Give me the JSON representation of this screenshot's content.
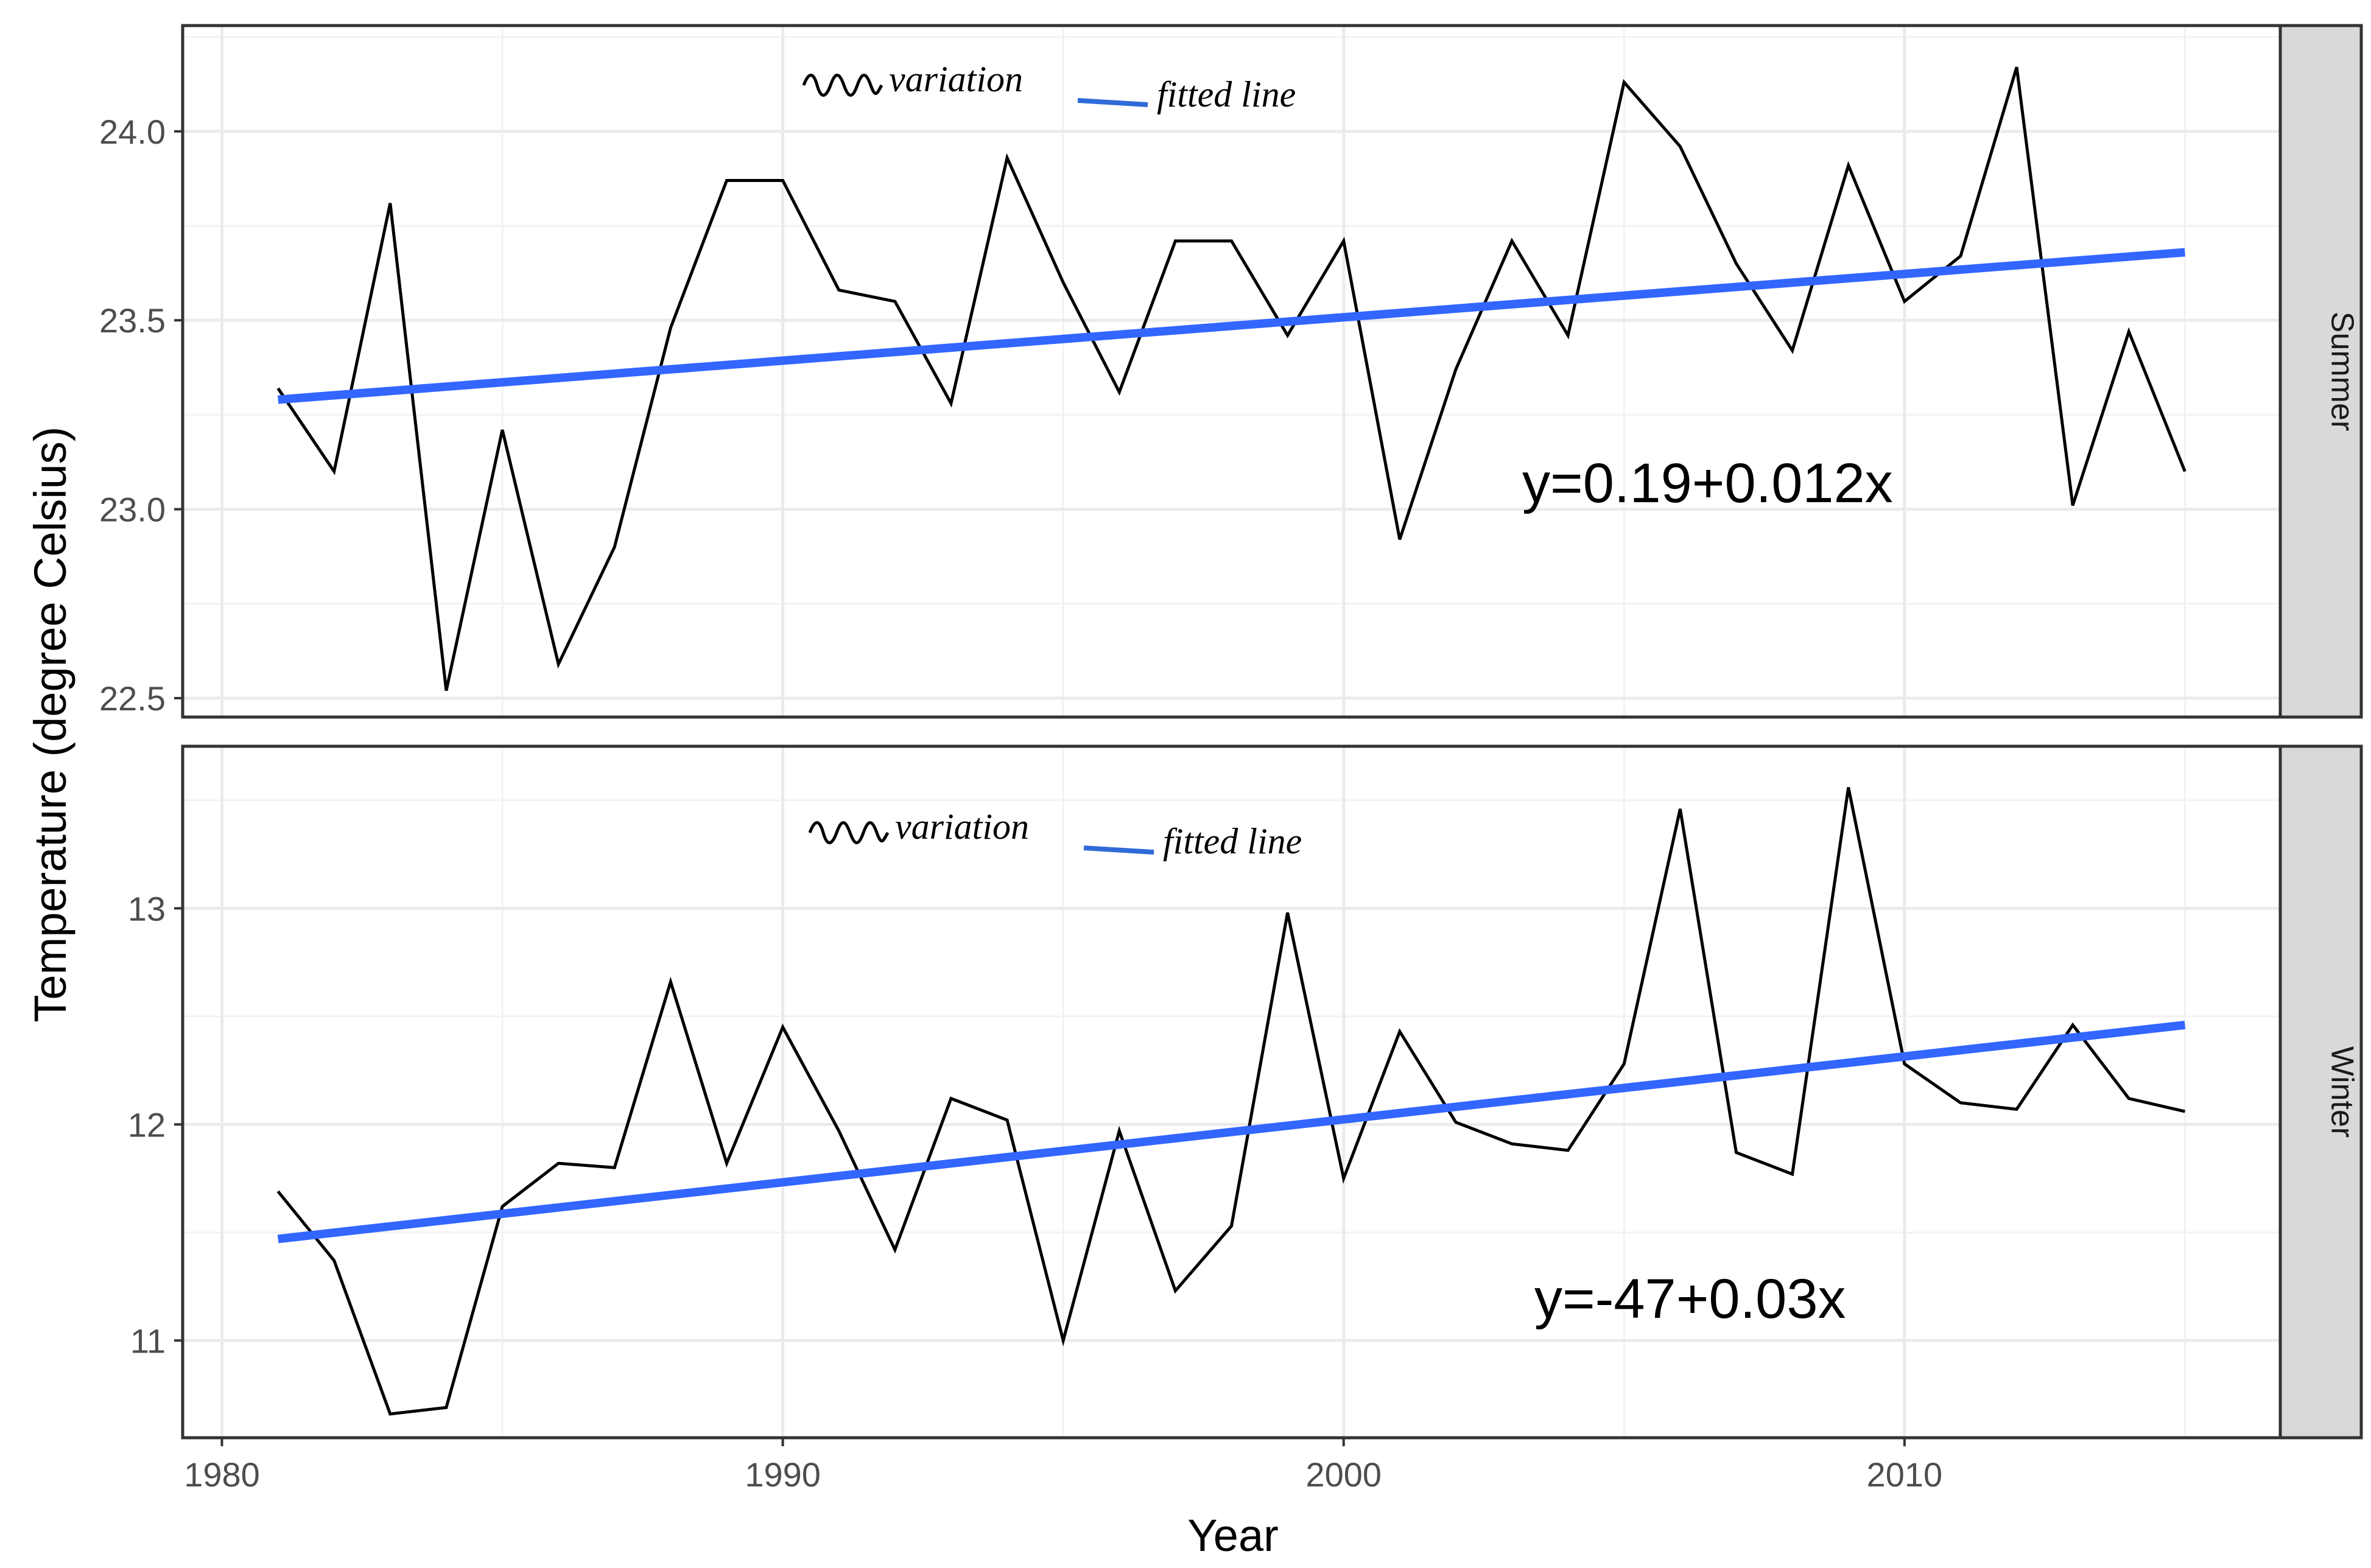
{
  "chart_data": {
    "type": "line",
    "xlabel": "Year",
    "ylabel": "Temperature (degree Celsius)",
    "xlim": [
      1979.3,
      2016.7
    ],
    "x_ticks": [
      1980,
      1990,
      2000,
      2010
    ],
    "x_tick_labels": [
      "1980",
      "1990",
      "2000",
      "2010"
    ],
    "grid": true,
    "legend": {
      "position": "top-center",
      "entries": [
        "variation",
        "fitted line"
      ]
    },
    "colors": {
      "variation": "#000000",
      "fitted": "#3366FF",
      "strip": "#D9D9D9",
      "grid": "#EBEBEB",
      "border": "#333333"
    },
    "panels": [
      {
        "strip": "Summer",
        "equation": "y=0.19+0.012x",
        "ylim": [
          22.45,
          24.28
        ],
        "y_ticks": [
          22.5,
          23.0,
          23.5,
          24.0
        ],
        "y_tick_labels": [
          "22.5",
          "23.0",
          "23.5",
          "24.0"
        ],
        "x": [
          1981,
          1982,
          1983,
          1984,
          1985,
          1986,
          1987,
          1988,
          1989,
          1990,
          1991,
          1992,
          1993,
          1994,
          1995,
          1996,
          1997,
          1998,
          1999,
          2000,
          2001,
          2002,
          2003,
          2004,
          2005,
          2006,
          2007,
          2008,
          2009,
          2010,
          2011,
          2012,
          2013,
          2014,
          2015
        ],
        "series": [
          {
            "name": "variation",
            "values": [
              23.32,
              23.1,
              23.81,
              22.52,
              23.21,
              22.59,
              22.9,
              23.48,
              23.87,
              23.87,
              23.58,
              23.55,
              23.28,
              23.93,
              23.6,
              23.31,
              23.71,
              23.71,
              23.46,
              23.71,
              22.92,
              23.37,
              23.71,
              23.46,
              24.13,
              23.96,
              23.65,
              23.42,
              23.91,
              23.55,
              23.67,
              24.17,
              23.01,
              23.47,
              23.1
            ]
          },
          {
            "name": "fitted line",
            "x": [
              1981,
              2015
            ],
            "values": [
              23.29,
              23.68
            ]
          }
        ]
      },
      {
        "strip": "Winter",
        "equation": "y=-47+0.03x",
        "ylim": [
          10.55,
          13.75
        ],
        "y_ticks": [
          11,
          12,
          13
        ],
        "y_tick_labels": [
          "11",
          "12",
          "13"
        ],
        "x": [
          1981,
          1982,
          1983,
          1984,
          1985,
          1986,
          1987,
          1988,
          1989,
          1990,
          1991,
          1992,
          1993,
          1994,
          1995,
          1996,
          1997,
          1998,
          1999,
          2000,
          2001,
          2002,
          2003,
          2004,
          2005,
          2006,
          2007,
          2008,
          2009,
          2010,
          2011,
          2012,
          2013,
          2014,
          2015
        ],
        "series": [
          {
            "name": "variation",
            "values": [
              11.69,
              11.37,
              10.66,
              10.69,
              11.62,
              11.82,
              11.8,
              12.66,
              11.82,
              12.45,
              11.97,
              11.42,
              12.12,
              12.02,
              11.0,
              11.97,
              11.23,
              11.53,
              12.98,
              11.75,
              12.43,
              12.01,
              11.91,
              11.88,
              12.28,
              13.46,
              11.87,
              11.77,
              13.56,
              12.28,
              12.1,
              12.07,
              12.46,
              12.12,
              12.06
            ]
          },
          {
            "name": "fitted line",
            "x": [
              1981,
              2015
            ],
            "values": [
              11.47,
              12.46
            ]
          }
        ]
      }
    ]
  }
}
